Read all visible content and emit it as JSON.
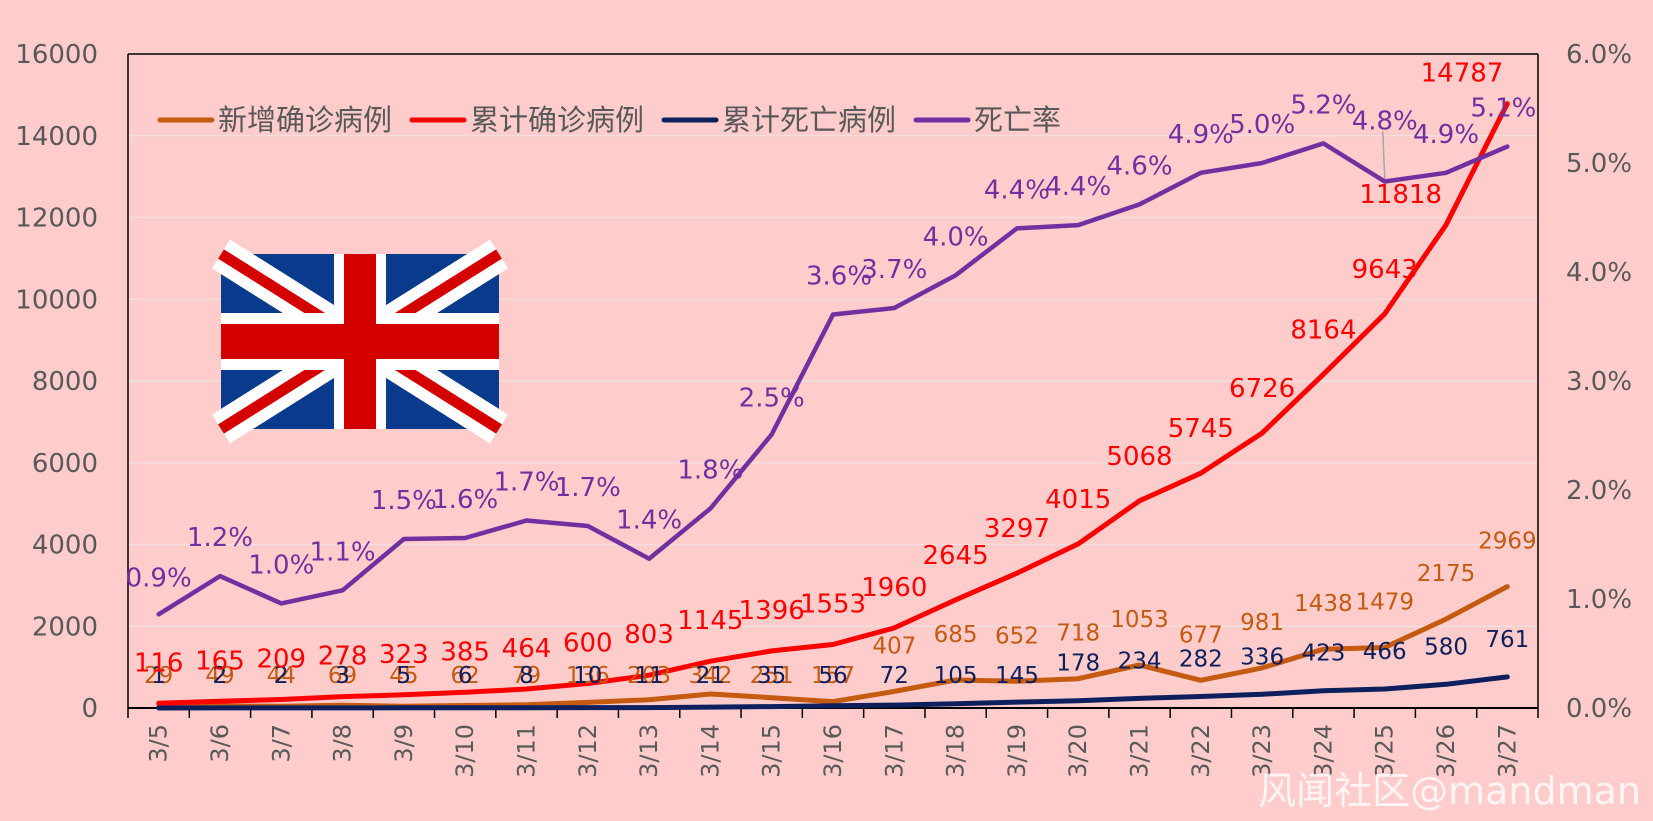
{
  "chart_data": {
    "type": "line",
    "categories": [
      "3/5",
      "3/6",
      "3/7",
      "3/8",
      "3/9",
      "3/10",
      "3/11",
      "3/12",
      "3/13",
      "3/14",
      "3/15",
      "3/16",
      "3/17",
      "3/18",
      "3/19",
      "3/20",
      "3/21",
      "3/22",
      "3/23",
      "3/24",
      "3/25",
      "3/26",
      "3/27"
    ],
    "series": [
      {
        "name": "新增确诊病例",
        "axis": "left",
        "color": "#c55a11",
        "values": [
          29,
          49,
          44,
          69,
          45,
          62,
          79,
          136,
          203,
          342,
          251,
          157,
          407,
          685,
          652,
          718,
          1053,
          677,
          981,
          1438,
          1479,
          2175,
          2969
        ],
        "labels": [
          "29",
          "49",
          "44",
          "69",
          "45",
          "62",
          "79",
          "136",
          "203",
          "342",
          "251",
          "157",
          "407",
          "685",
          "652",
          "718",
          "1053",
          "677",
          "981",
          "1438",
          "1479",
          "2175",
          "2969"
        ]
      },
      {
        "name": "累计确诊病例",
        "axis": "left",
        "color": "#ff0000",
        "values": [
          116,
          165,
          209,
          278,
          323,
          385,
          464,
          600,
          803,
          1145,
          1396,
          1553,
          1960,
          2645,
          3297,
          4015,
          5068,
          5745,
          6726,
          8164,
          9643,
          11818,
          14787
        ],
        "labels": [
          "116",
          "165",
          "209",
          "278",
          "323",
          "385",
          "464",
          "600",
          "803",
          "1145",
          "1396",
          "1553",
          "1960",
          "2645",
          "3297",
          "4015",
          "5068",
          "5745",
          "6726",
          "8164",
          "9643",
          "11818",
          "14787"
        ]
      },
      {
        "name": "累计死亡病例",
        "axis": "left",
        "color": "#0d1f5c",
        "values": [
          1,
          2,
          2,
          3,
          5,
          6,
          8,
          10,
          11,
          21,
          35,
          56,
          72,
          105,
          145,
          178,
          234,
          282,
          336,
          423,
          466,
          580,
          761
        ],
        "labels": [
          "1",
          "2",
          "2",
          "3",
          "5",
          "6",
          "8",
          "10",
          "11",
          "21",
          "35",
          "56",
          "72",
          "105",
          "145",
          "178",
          "234",
          "282",
          "336",
          "423",
          "466",
          "580",
          "761"
        ]
      },
      {
        "name": "死亡率",
        "axis": "right",
        "color": "#7030a0",
        "values": [
          0.86,
          1.21,
          0.96,
          1.08,
          1.55,
          1.56,
          1.72,
          1.67,
          1.37,
          1.83,
          2.51,
          3.61,
          3.67,
          3.97,
          4.4,
          4.43,
          4.62,
          4.91,
          5.0,
          5.18,
          4.83,
          4.91,
          5.15
        ],
        "labels": [
          "0.9%",
          "1.2%",
          "1.0%",
          "1.1%",
          "1.5%",
          "1.6%",
          "1.7%",
          "1.7%",
          "1.4%",
          "1.8%",
          "2.5%",
          "3.6%",
          "3.7%",
          "4.0%",
          "4.4%",
          "4.4%",
          "4.6%",
          "4.9%",
          "5.0%",
          "5.2%",
          "4.8%",
          "4.9%",
          "5.1%"
        ]
      }
    ],
    "title": "",
    "xlabel": "",
    "ylabel": "",
    "y2label": "",
    "ylim": [
      0,
      16000
    ],
    "y2lim": [
      0,
      6.0
    ],
    "yticks": [
      "0",
      "2000",
      "4000",
      "6000",
      "8000",
      "10000",
      "12000",
      "14000",
      "16000"
    ],
    "y2ticks": [
      "0.0%",
      "1.0%",
      "2.0%",
      "3.0%",
      "4.0%",
      "5.0%",
      "6.0%"
    ],
    "legend_position": "top-left",
    "grid": true
  },
  "image": {
    "flag": "uk-flag"
  },
  "watermark": "风闻社区@mandman"
}
